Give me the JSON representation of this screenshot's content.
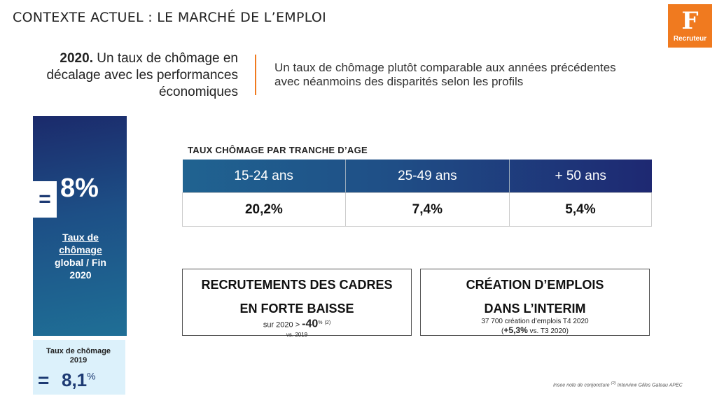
{
  "header": {
    "title": "CONTEXTE ACTUEL : LE MARCHÉ DE L’EMPLOI",
    "logo_letter": "F",
    "logo_label": "Recruteur",
    "logo_color": "#f07a1f"
  },
  "intro": {
    "year": "2020.",
    "left_text": " Un taux de chômage en décalage avec les performances économiques",
    "right_line1": "Un taux de chômage plutôt comparable aux années précédentes",
    "right_line2": "avec néanmoins des disparités selon les profils"
  },
  "global_rate": {
    "eq": "=",
    "value": "8%",
    "label_u1": "Taux de",
    "label_u2": "chômage",
    "label_l3": "global / Fin",
    "label_l4": "2020"
  },
  "rate_2019": {
    "label": "Taux de chômage 2019",
    "eq": "=",
    "value": "8,1",
    "unit": "%"
  },
  "age_table": {
    "title": "TAUX CHÔMAGE PAR TRANCHE D’AGE",
    "headers": [
      "15-24 ans",
      "25-49 ans",
      "+ 50 ans"
    ],
    "values": [
      "20,2%",
      "7,4%",
      "5,4%"
    ]
  },
  "box_recrutements": {
    "title1": "RECRUTEMENTS DES CADRES",
    "title2": "EN FORTE BAISSE",
    "pre": "sur 2020 > ",
    "value": "-40",
    "unit": "%",
    "ref": "(2)",
    "vs": "vs. 2019"
  },
  "box_interim": {
    "title1": "CRÉATION D’EMPLOIS",
    "title2": "DANS L’INTERIM",
    "line1": "37 700 création d’emplois T4 2020",
    "open": "(",
    "value": "+5,3%",
    "vs": " vs. T3 2020)"
  },
  "footnote": {
    "text1": "Insee note de conjoncture ",
    "ref": "(2)",
    "text2": " Interview Gilles Gateau APEC"
  }
}
